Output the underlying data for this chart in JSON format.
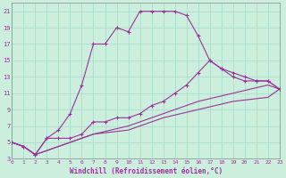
{
  "xlabel": "Windchill (Refroidissement éolien,°C)",
  "bg_color": "#cceedd",
  "line_color": "#993399",
  "grid_color": "#aaddcc",
  "xmin": 0,
  "xmax": 23,
  "ymin": 3,
  "ymax": 22,
  "yticks": [
    3,
    5,
    7,
    9,
    11,
    13,
    15,
    17,
    19,
    21
  ],
  "xticks": [
    0,
    1,
    2,
    3,
    4,
    5,
    6,
    7,
    8,
    9,
    10,
    11,
    12,
    13,
    14,
    15,
    16,
    17,
    18,
    19,
    20,
    21,
    22,
    23
  ],
  "line1_x": [
    0,
    1,
    2,
    3,
    4,
    5,
    6,
    7,
    8,
    9,
    10,
    11,
    12,
    13,
    14,
    15,
    16,
    17,
    18,
    19,
    20,
    21,
    22,
    23
  ],
  "line1_y": [
    5,
    4.5,
    3.5,
    5.5,
    6.5,
    8.5,
    12,
    17,
    17,
    19,
    18.5,
    21,
    21,
    21,
    21,
    20.5,
    18,
    15,
    14,
    13.5,
    13,
    12.5,
    12.5,
    11.5
  ],
  "line2_x": [
    0,
    1,
    2,
    3,
    4,
    5,
    6,
    7,
    8,
    9,
    10,
    11,
    12,
    13,
    14,
    15,
    16,
    17,
    18,
    19,
    20,
    21,
    22,
    23
  ],
  "line2_y": [
    5,
    4.5,
    3.5,
    5.5,
    5.5,
    5.5,
    6,
    7.5,
    7.5,
    8,
    8,
    8.5,
    9.5,
    10,
    11,
    12,
    13.5,
    15,
    14,
    13,
    12.5,
    12.5,
    12.5,
    11.5
  ],
  "line3_x": [
    0,
    1,
    2,
    3,
    5,
    7,
    10,
    13,
    16,
    19,
    22,
    23
  ],
  "line3_y": [
    5,
    4.5,
    3.5,
    4,
    5,
    6,
    7,
    8.5,
    10,
    11,
    12,
    11.5
  ],
  "line4_x": [
    0,
    1,
    2,
    3,
    5,
    7,
    10,
    13,
    16,
    19,
    22,
    23
  ],
  "line4_y": [
    5,
    4.5,
    3.5,
    4,
    5,
    6,
    6.5,
    8,
    9,
    10,
    10.5,
    11.5
  ]
}
